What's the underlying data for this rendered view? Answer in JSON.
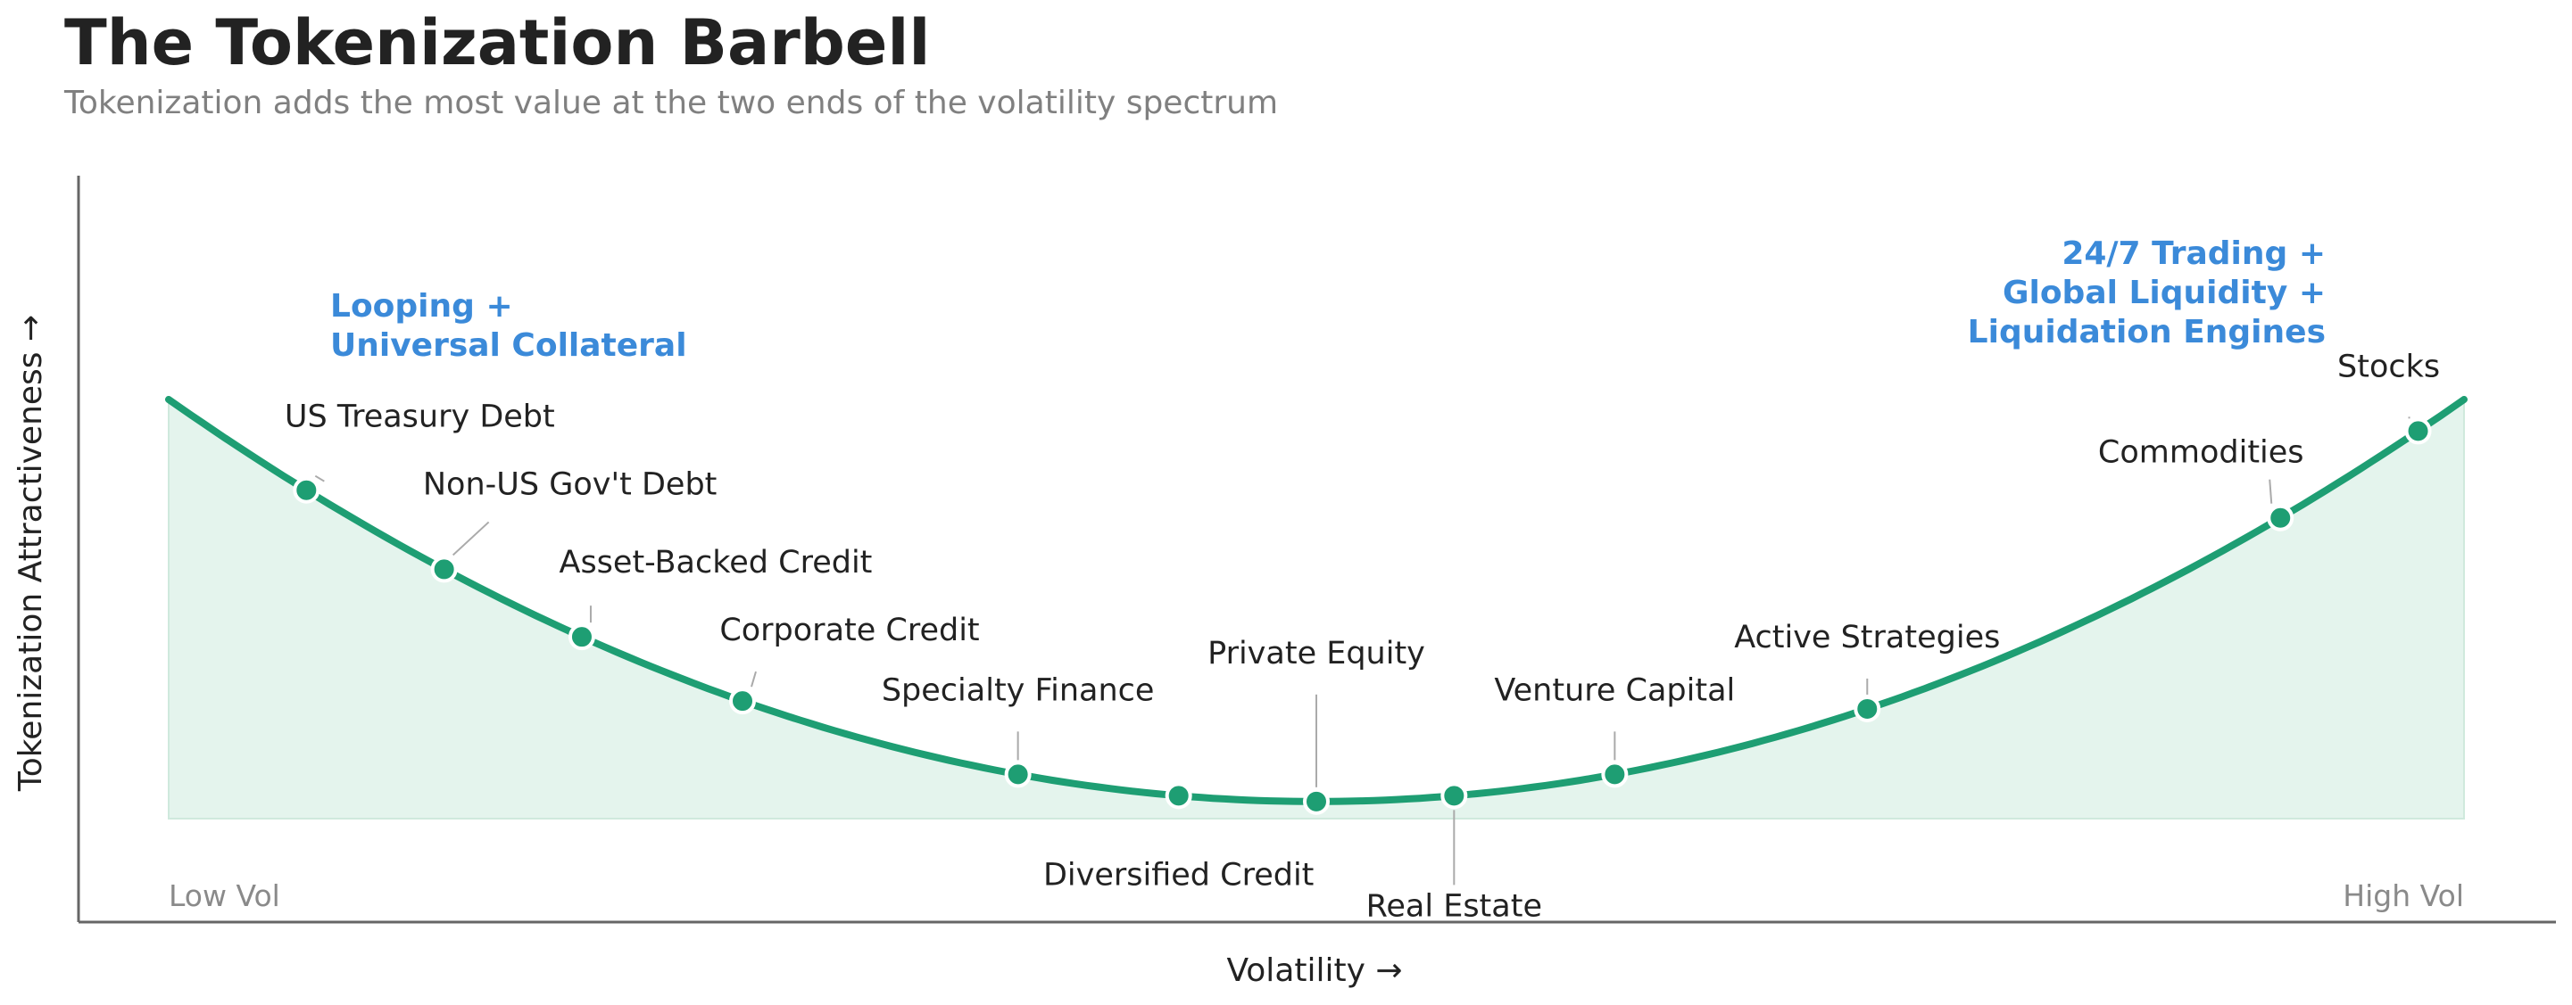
{
  "chart_data": {
    "type": "area",
    "title": "The Tokenization Barbell",
    "subtitle": "Tokenization adds the most value at the two ends of the volatility spectrum",
    "xlabel": "Volatility  →",
    "ylabel": "Tokenization Attractiveness  →",
    "x_end_labels": [
      "Low Vol",
      "High Vol"
    ],
    "xlim": [
      0,
      1
    ],
    "ylim": [
      0,
      1
    ],
    "curve": {
      "type": "parabola",
      "vertex_x": 0.5,
      "vertex_y": 0.04,
      "end_y": 0.98
    },
    "colors": {
      "line": "#1e9e73",
      "fill": "#e4f4ed",
      "annotation": "#3b8ad9",
      "leader": "#aaaaaa"
    },
    "points": [
      {
        "name": "US Treasury Debt",
        "x": 0.06,
        "label_pos": "above"
      },
      {
        "name": "Non-US Gov't Debt",
        "x": 0.12,
        "label_pos": "above"
      },
      {
        "name": "Asset-Backed Credit",
        "x": 0.18,
        "label_pos": "above"
      },
      {
        "name": "Corporate Credit",
        "x": 0.25,
        "label_pos": "above"
      },
      {
        "name": "Specialty Finance",
        "x": 0.37,
        "label_pos": "above"
      },
      {
        "name": "Diversified Credit",
        "x": 0.44,
        "label_pos": "below"
      },
      {
        "name": "Private Equity",
        "x": 0.5,
        "label_pos": "above"
      },
      {
        "name": "Real Estate",
        "x": 0.56,
        "label_pos": "below"
      },
      {
        "name": "Venture Capital",
        "x": 0.63,
        "label_pos": "above"
      },
      {
        "name": "Active Strategies",
        "x": 0.74,
        "label_pos": "above"
      },
      {
        "name": "Commodities",
        "x": 0.92,
        "label_pos": "above"
      },
      {
        "name": "Stocks",
        "x": 0.98,
        "label_pos": "above"
      }
    ],
    "annotations": [
      {
        "lines": [
          "Looping +",
          "Universal Collateral"
        ],
        "side": "left"
      },
      {
        "lines": [
          "24/7 Trading +",
          "Global Liquidity +",
          "Liquidation Engines"
        ],
        "side": "right"
      }
    ]
  }
}
